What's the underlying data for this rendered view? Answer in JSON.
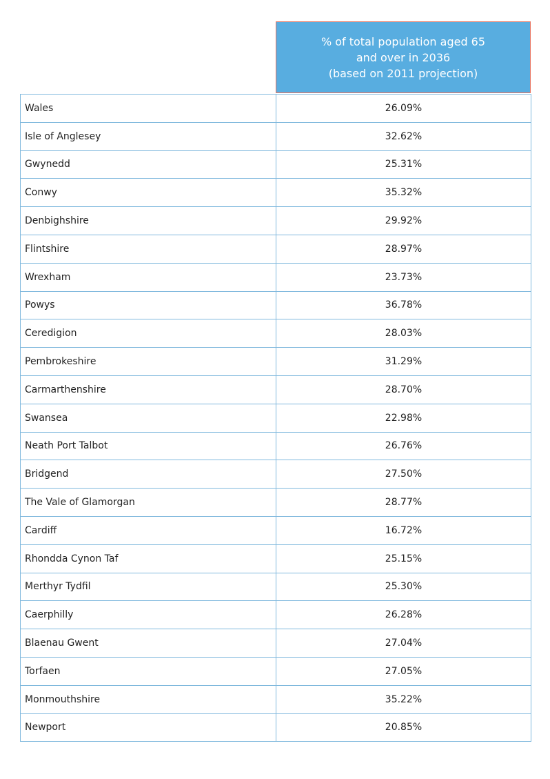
{
  "header": {
    "line1": "% of total population aged 65",
    "line2": "and over in 2036",
    "line3": "(based on 2011 projection)"
  },
  "rows": [
    {
      "region": "Wales",
      "value": "26.09%"
    },
    {
      "region": "Isle of Anglesey",
      "value": "32.62%"
    },
    {
      "region": "Gwynedd",
      "value": "25.31%"
    },
    {
      "region": "Conwy",
      "value": "35.32%"
    },
    {
      "region": "Denbighshire",
      "value": "29.92%"
    },
    {
      "region": "Flintshire",
      "value": "28.97%"
    },
    {
      "region": "Wrexham",
      "value": "23.73%"
    },
    {
      "region": "Powys",
      "value": "36.78%"
    },
    {
      "region": "Ceredigion",
      "value": "28.03%"
    },
    {
      "region": "Pembrokeshire",
      "value": "31.29%"
    },
    {
      "region": "Carmarthenshire",
      "value": "28.70%"
    },
    {
      "region": "Swansea",
      "value": "22.98%"
    },
    {
      "region": "Neath Port Talbot",
      "value": "26.76%"
    },
    {
      "region": "Bridgend",
      "value": "27.50%"
    },
    {
      "region": "The Vale of Glamorgan",
      "value": "28.77%"
    },
    {
      "region": "Cardiff",
      "value": "16.72%"
    },
    {
      "region": "Rhondda Cynon Taf",
      "value": "25.15%"
    },
    {
      "region": "Merthyr Tydfil",
      "value": "25.30%"
    },
    {
      "region": "Caerphilly",
      "value": "26.28%"
    },
    {
      "region": "Blaenau Gwent",
      "value": "27.04%"
    },
    {
      "region": "Torfaen",
      "value": "27.05%"
    },
    {
      "region": "Monmouthshire",
      "value": "35.22%"
    },
    {
      "region": "Newport",
      "value": "20.85%"
    }
  ],
  "colors": {
    "header_bg": "#58ade0",
    "header_border": "#e8735f",
    "grid_line": "#7fb8dd"
  }
}
